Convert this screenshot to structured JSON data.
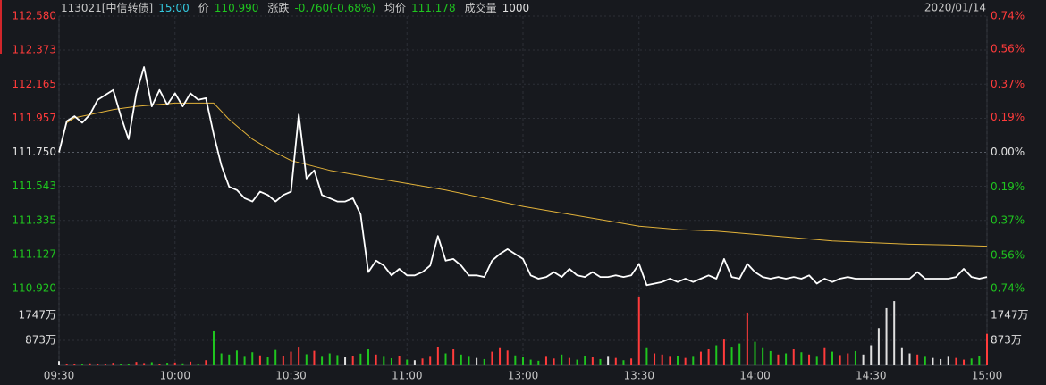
{
  "header": {
    "code": "113021[中信转债]",
    "time": "15:00",
    "time_color": "#33c7dd",
    "label_color": "#c8c8c8",
    "fields": [
      {
        "label": "价",
        "value": "110.990",
        "color": "#1fc51f"
      },
      {
        "label": "涨跌",
        "value": "-0.760(-0.68%)",
        "color": "#1fc51f"
      },
      {
        "label": "均价",
        "value": "111.178",
        "color": "#1fc51f"
      },
      {
        "label": "成交量",
        "value": "1000",
        "color": "#e0e0e0"
      }
    ],
    "date": "2020/01/14"
  },
  "chart_data": [
    {
      "type": "line",
      "xlim": [
        0,
        240
      ],
      "xticks": [
        0,
        30,
        60,
        90,
        120,
        150,
        180,
        210,
        240
      ],
      "ylim": [
        110.92,
        112.58
      ],
      "yticks": [
        {
          "value": 110.92,
          "label": "110.920"
        },
        {
          "value": 111.127,
          "label": "111.127"
        },
        {
          "value": 111.335,
          "label": "111.335"
        },
        {
          "value": 111.543,
          "label": "111.543"
        },
        {
          "value": 111.75,
          "label": "111.750"
        },
        {
          "value": 111.957,
          "label": "111.957"
        },
        {
          "value": 112.165,
          "label": "112.165"
        },
        {
          "value": 112.373,
          "label": "112.373"
        },
        {
          "value": 112.58,
          "label": "112.580"
        }
      ],
      "y2lim": [
        -0.74,
        0.74
      ],
      "y2ticks": [
        {
          "value": -0.74,
          "label": "0.74%"
        },
        {
          "value": -0.56,
          "label": "0.56%"
        },
        {
          "value": -0.37,
          "label": "0.37%"
        },
        {
          "value": -0.19,
          "label": "0.19%"
        },
        {
          "value": 0,
          "label": "0.00%"
        },
        {
          "value": 0.19,
          "label": "0.19%"
        },
        {
          "value": 0.37,
          "label": "0.37%"
        },
        {
          "value": 0.56,
          "label": "0.56%"
        },
        {
          "value": 0.74,
          "label": "0.74%"
        }
      ],
      "grid": true,
      "up_color": "#ff3b3b",
      "down_color": "#1fc51f",
      "flat_color": "#e0e0e0",
      "x": [
        0,
        2,
        4,
        6,
        8,
        10,
        12,
        14,
        16,
        18,
        20,
        22,
        24,
        26,
        28,
        30,
        32,
        34,
        36,
        38,
        40,
        42,
        44,
        46,
        48,
        50,
        52,
        54,
        56,
        58,
        60,
        62,
        64,
        66,
        68,
        70,
        72,
        74,
        76,
        78,
        80,
        82,
        84,
        86,
        88,
        90,
        92,
        94,
        96,
        98,
        100,
        102,
        104,
        106,
        108,
        110,
        112,
        114,
        116,
        118,
        120,
        122,
        124,
        126,
        128,
        130,
        132,
        134,
        136,
        138,
        140,
        142,
        144,
        146,
        148,
        150,
        152,
        154,
        156,
        158,
        160,
        162,
        164,
        166,
        168,
        170,
        172,
        174,
        176,
        178,
        180,
        182,
        184,
        186,
        188,
        190,
        192,
        194,
        196,
        198,
        200,
        202,
        204,
        206,
        208,
        210,
        212,
        214,
        216,
        218,
        220,
        222,
        224,
        226,
        228,
        230,
        232,
        234,
        236,
        238,
        240
      ],
      "series": [
        {
          "color": "#ffffff",
          "values": [
            111.75,
            111.94,
            111.97,
            111.93,
            111.98,
            112.07,
            112.1,
            112.13,
            111.97,
            111.83,
            112.11,
            112.27,
            112.03,
            112.13,
            112.04,
            112.11,
            112.03,
            112.11,
            112.07,
            112.08,
            111.86,
            111.67,
            111.54,
            111.52,
            111.47,
            111.45,
            111.51,
            111.49,
            111.45,
            111.49,
            111.51,
            111.98,
            111.59,
            111.64,
            111.49,
            111.47,
            111.45,
            111.45,
            111.47,
            111.37,
            111.02,
            111.09,
            111.06,
            111.0,
            111.04,
            111.0,
            111.0,
            111.02,
            111.06,
            111.24,
            111.09,
            111.1,
            111.06,
            111.0,
            111.0,
            110.99,
            111.09,
            111.13,
            111.16,
            111.13,
            111.1,
            111.0,
            110.98,
            110.99,
            111.02,
            110.99,
            111.04,
            111.0,
            110.99,
            111.02,
            110.99,
            110.99,
            111.0,
            110.99,
            111.0,
            111.07,
            110.94,
            110.95,
            110.96,
            110.98,
            110.96,
            110.98,
            110.96,
            110.98,
            111.0,
            110.98,
            111.1,
            110.99,
            110.98,
            111.07,
            111.02,
            110.99,
            110.98,
            110.99,
            110.98,
            110.99,
            110.98,
            111.0,
            110.95,
            110.98,
            110.96,
            110.98,
            110.99,
            110.98,
            110.98,
            110.98,
            110.98,
            110.98,
            110.98,
            110.98,
            110.98,
            111.02,
            110.98,
            110.98,
            110.98,
            110.98,
            110.99,
            111.04,
            110.99,
            110.98,
            110.99
          ]
        },
        {
          "color": "#e2b23a",
          "x": [
            0,
            2,
            4,
            6,
            10,
            14,
            20,
            30,
            40,
            44,
            50,
            55,
            60,
            70,
            80,
            90,
            100,
            110,
            120,
            130,
            140,
            150,
            160,
            170,
            180,
            190,
            200,
            210,
            220,
            230,
            240
          ],
          "values": [
            111.75,
            111.93,
            111.96,
            111.97,
            111.99,
            112.01,
            112.03,
            112.05,
            112.05,
            111.95,
            111.83,
            111.76,
            111.7,
            111.64,
            111.6,
            111.56,
            111.52,
            111.47,
            111.42,
            111.38,
            111.34,
            111.3,
            111.28,
            111.27,
            111.25,
            111.23,
            111.21,
            111.2,
            111.19,
            111.185,
            111.178
          ]
        }
      ]
    },
    {
      "type": "bar",
      "xlim": [
        0,
        240
      ],
      "xticks": [
        {
          "value": 0,
          "label": "09:30"
        },
        {
          "value": 30,
          "label": "10:00"
        },
        {
          "value": 60,
          "label": "10:30"
        },
        {
          "value": 90,
          "label": "11:00"
        },
        {
          "value": 120,
          "label": "13:00"
        },
        {
          "value": 150,
          "label": "13:30"
        },
        {
          "value": 180,
          "label": "14:00"
        },
        {
          "value": 210,
          "label": "14:30"
        },
        {
          "value": 240,
          "label": "15:00"
        }
      ],
      "ylim": [
        0,
        2460
      ],
      "yticks": [
        {
          "value": 873,
          "label": "873万"
        },
        {
          "value": 1747,
          "label": "1747万"
        }
      ],
      "x": [
        0,
        2,
        4,
        6,
        8,
        10,
        12,
        14,
        16,
        18,
        20,
        22,
        24,
        26,
        28,
        30,
        32,
        34,
        36,
        38,
        40,
        42,
        44,
        46,
        48,
        50,
        52,
        54,
        56,
        58,
        60,
        62,
        64,
        66,
        68,
        70,
        72,
        74,
        76,
        78,
        80,
        82,
        84,
        86,
        88,
        90,
        92,
        94,
        96,
        98,
        100,
        102,
        104,
        106,
        108,
        110,
        112,
        114,
        116,
        118,
        120,
        122,
        124,
        126,
        128,
        130,
        132,
        134,
        136,
        138,
        140,
        142,
        144,
        146,
        148,
        150,
        152,
        154,
        156,
        158,
        160,
        162,
        164,
        166,
        168,
        170,
        172,
        174,
        176,
        178,
        180,
        182,
        184,
        186,
        188,
        190,
        192,
        194,
        196,
        198,
        200,
        202,
        204,
        206,
        208,
        210,
        212,
        214,
        216,
        218,
        220,
        222,
        224,
        226,
        228,
        230,
        232,
        234,
        236,
        238,
        240
      ],
      "values": [
        150,
        40,
        60,
        30,
        70,
        50,
        40,
        90,
        60,
        50,
        120,
        80,
        110,
        60,
        90,
        100,
        70,
        130,
        60,
        180,
        1216,
        420,
        380,
        520,
        300,
        460,
        350,
        280,
        540,
        330,
        480,
        620,
        390,
        510,
        300,
        420,
        360,
        280,
        330,
        410,
        560,
        380,
        300,
        250,
        330,
        200,
        180,
        240,
        300,
        650,
        420,
        560,
        380,
        300,
        260,
        220,
        480,
        600,
        520,
        350,
        280,
        200,
        160,
        300,
        240,
        380,
        260,
        200,
        340,
        280,
        220,
        300,
        260,
        180,
        240,
        2400,
        600,
        420,
        380,
        300,
        340,
        260,
        300,
        480,
        560,
        700,
        900,
        620,
        760,
        1840,
        820,
        600,
        500,
        380,
        420,
        560,
        460,
        380,
        300,
        600,
        480,
        360,
        420,
        500,
        380,
        700,
        1300,
        1995,
        2240,
        600,
        420,
        380,
        300,
        260,
        220,
        300,
        260,
        200,
        240,
        320,
        1100
      ]
    }
  ]
}
